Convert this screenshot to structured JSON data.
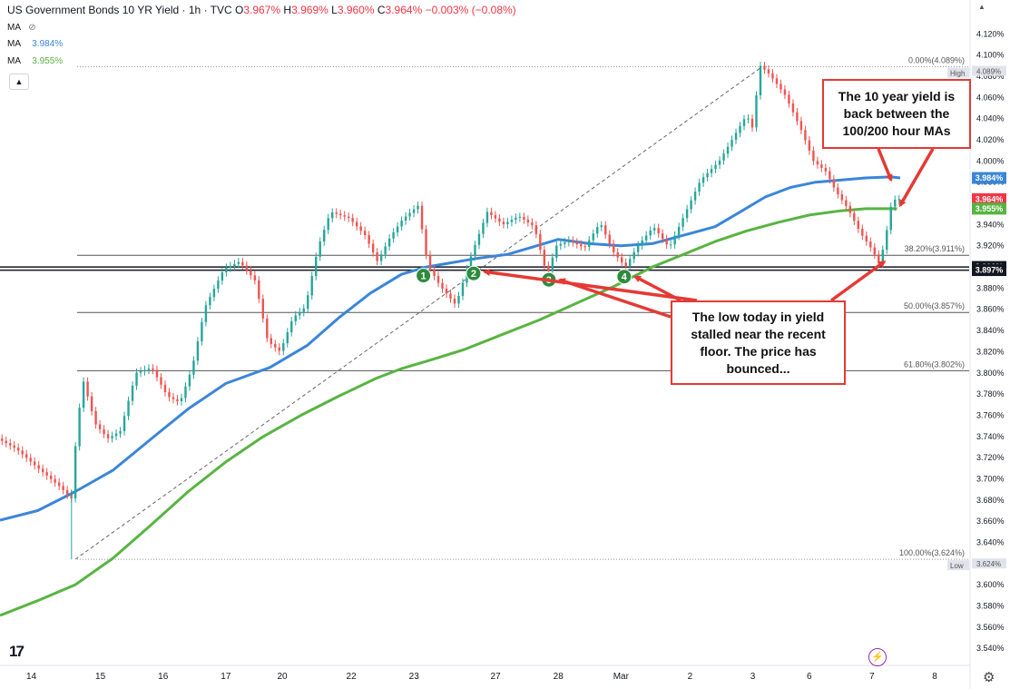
{
  "header": {
    "title": "US Government Bonds 10 YR Yield · 1h · TVC",
    "ohlc": [
      {
        "k": "O",
        "v": "3.967%"
      },
      {
        "k": "H",
        "v": "3.969%"
      },
      {
        "k": "L",
        "v": "3.960%"
      },
      {
        "k": "C",
        "v": "3.964%"
      }
    ],
    "change": "−0.003% (−0.08%)",
    "ma_label": "MA",
    "ma_values": [
      "3.984%",
      "3.955%"
    ],
    "collapse_icon": "chevron-up-icon"
  },
  "colors": {
    "up": "#26a69a",
    "down": "#ef5350",
    "ma100": "#3a86d9",
    "ma200": "#58b442",
    "annotation": "#e53935",
    "marker": "#2e8b3d"
  },
  "chart_data": {
    "type": "line",
    "title": "US Government Bonds 10 YR Yield · 1h · TVC",
    "y_unit": "%",
    "ylim": [
      3.535,
      4.128
    ],
    "y_ticks": [
      "4.120%",
      "4.100%",
      "4.080%",
      "4.060%",
      "4.040%",
      "4.020%",
      "4.000%",
      "3.980%",
      "3.960%",
      "3.940%",
      "3.920%",
      "3.880%",
      "3.860%",
      "3.840%",
      "3.820%",
      "3.800%",
      "3.780%",
      "3.760%",
      "3.740%",
      "3.720%",
      "3.700%",
      "3.680%",
      "3.660%",
      "3.640%",
      "3.600%",
      "3.580%",
      "3.560%",
      "3.540%"
    ],
    "x_ticks": [
      "14",
      "15",
      "16",
      "17",
      "20",
      "22",
      "23",
      "27",
      "28",
      "Mar",
      "2",
      "3",
      "6",
      "7",
      "8"
    ],
    "x_tick_pos": [
      0.5,
      1.6,
      2.6,
      3.6,
      4.5,
      5.6,
      6.6,
      7.9,
      8.9,
      9.9,
      11.0,
      12.0,
      12.9,
      13.9,
      14.9
    ],
    "x_range": [
      0,
      15.45
    ],
    "series": [
      {
        "name": "US Government Bonds 10 YR Yield",
        "style": "price",
        "points": [
          [
            0.0,
            3.738
          ],
          [
            0.3,
            3.728
          ],
          [
            0.6,
            3.712
          ],
          [
            0.8,
            3.702
          ],
          [
            1.0,
            3.692
          ],
          [
            1.12,
            3.684
          ],
          [
            1.14,
            3.626
          ],
          [
            1.18,
            3.7
          ],
          [
            1.35,
            3.795
          ],
          [
            1.55,
            3.752
          ],
          [
            1.75,
            3.738
          ],
          [
            1.95,
            3.745
          ],
          [
            2.2,
            3.8
          ],
          [
            2.45,
            3.805
          ],
          [
            2.7,
            3.778
          ],
          [
            2.9,
            3.772
          ],
          [
            3.1,
            3.806
          ],
          [
            3.3,
            3.862
          ],
          [
            3.6,
            3.898
          ],
          [
            3.85,
            3.905
          ],
          [
            4.1,
            3.887
          ],
          [
            4.3,
            3.83
          ],
          [
            4.5,
            3.82
          ],
          [
            4.7,
            3.852
          ],
          [
            4.9,
            3.862
          ],
          [
            5.1,
            3.918
          ],
          [
            5.3,
            3.952
          ],
          [
            5.6,
            3.946
          ],
          [
            5.85,
            3.93
          ],
          [
            6.05,
            3.905
          ],
          [
            6.25,
            3.928
          ],
          [
            6.45,
            3.945
          ],
          [
            6.7,
            3.958
          ],
          [
            6.85,
            3.902
          ],
          [
            7.05,
            3.882
          ],
          [
            7.3,
            3.864
          ],
          [
            7.55,
            3.912
          ],
          [
            7.8,
            3.952
          ],
          [
            8.05,
            3.94
          ],
          [
            8.3,
            3.948
          ],
          [
            8.55,
            3.938
          ],
          [
            8.75,
            3.892
          ],
          [
            8.9,
            3.92
          ],
          [
            9.1,
            3.925
          ],
          [
            9.35,
            3.918
          ],
          [
            9.6,
            3.942
          ],
          [
            9.8,
            3.915
          ],
          [
            10.0,
            3.9
          ],
          [
            10.2,
            3.92
          ],
          [
            10.45,
            3.938
          ],
          [
            10.7,
            3.918
          ],
          [
            10.95,
            3.95
          ],
          [
            11.2,
            3.982
          ],
          [
            11.5,
            4.0
          ],
          [
            11.75,
            4.025
          ],
          [
            11.95,
            4.045
          ],
          [
            12.0,
            4.02
          ],
          [
            12.15,
            4.09
          ],
          [
            12.3,
            4.082
          ],
          [
            12.55,
            4.062
          ],
          [
            12.8,
            4.03
          ],
          [
            13.0,
            4.0
          ],
          [
            13.2,
            3.99
          ],
          [
            13.35,
            3.972
          ],
          [
            13.55,
            3.955
          ],
          [
            13.75,
            3.932
          ],
          [
            13.95,
            3.915
          ],
          [
            14.05,
            3.902
          ],
          [
            14.15,
            3.928
          ],
          [
            14.25,
            3.962
          ],
          [
            14.32,
            3.964
          ]
        ]
      },
      {
        "name": "MA (100)",
        "style": "ma100",
        "points": [
          [
            0.0,
            3.661
          ],
          [
            0.6,
            3.67
          ],
          [
            1.2,
            3.688
          ],
          [
            1.8,
            3.708
          ],
          [
            2.5,
            3.742
          ],
          [
            3.0,
            3.766
          ],
          [
            3.6,
            3.79
          ],
          [
            4.3,
            3.805
          ],
          [
            4.9,
            3.826
          ],
          [
            5.4,
            3.852
          ],
          [
            5.9,
            3.875
          ],
          [
            6.4,
            3.893
          ],
          [
            6.8,
            3.9
          ],
          [
            7.2,
            3.904
          ],
          [
            7.6,
            3.908
          ],
          [
            8.1,
            3.912
          ],
          [
            8.5,
            3.919
          ],
          [
            8.9,
            3.926
          ],
          [
            9.4,
            3.922
          ],
          [
            9.9,
            3.92
          ],
          [
            10.4,
            3.922
          ],
          [
            10.9,
            3.93
          ],
          [
            11.4,
            3.938
          ],
          [
            11.8,
            3.952
          ],
          [
            12.2,
            3.966
          ],
          [
            12.6,
            3.975
          ],
          [
            13.0,
            3.98
          ],
          [
            13.4,
            3.982
          ],
          [
            13.8,
            3.984
          ],
          [
            14.2,
            3.985
          ],
          [
            14.35,
            3.984
          ]
        ]
      },
      {
        "name": "MA (200)",
        "style": "ma200",
        "points": [
          [
            0.0,
            3.571
          ],
          [
            0.6,
            3.585
          ],
          [
            1.2,
            3.6
          ],
          [
            1.8,
            3.625
          ],
          [
            2.4,
            3.656
          ],
          [
            3.0,
            3.688
          ],
          [
            3.6,
            3.716
          ],
          [
            4.2,
            3.74
          ],
          [
            4.8,
            3.76
          ],
          [
            5.4,
            3.778
          ],
          [
            6.0,
            3.795
          ],
          [
            6.4,
            3.804
          ],
          [
            6.8,
            3.811
          ],
          [
            7.4,
            3.822
          ],
          [
            8.0,
            3.836
          ],
          [
            8.6,
            3.85
          ],
          [
            9.2,
            3.866
          ],
          [
            9.8,
            3.882
          ],
          [
            10.4,
            3.9
          ],
          [
            10.9,
            3.912
          ],
          [
            11.4,
            3.924
          ],
          [
            11.9,
            3.934
          ],
          [
            12.4,
            3.942
          ],
          [
            12.9,
            3.949
          ],
          [
            13.4,
            3.953
          ],
          [
            13.8,
            3.955
          ],
          [
            14.3,
            3.955
          ]
        ]
      }
    ],
    "fib_lines": [
      {
        "label": "0.00%(4.089%)",
        "value": 4.089
      },
      {
        "label": "38.20%(3.911%)",
        "value": 3.911
      },
      {
        "label": "50.00%(3.857%)",
        "value": 3.857
      },
      {
        "label": "61.80%(3.802%)",
        "value": 3.802
      },
      {
        "label": "100.00%(3.624%)",
        "value": 3.624
      }
    ],
    "horizontal_lines": [
      3.9,
      3.897
    ],
    "trend_line": {
      "from": [
        1.2,
        3.624
      ],
      "to": [
        12.15,
        4.089
      ]
    },
    "level_markers": [
      {
        "label": "High",
        "value": 4.089,
        "price": "4.089%"
      },
      {
        "label": "Low",
        "value": 3.624,
        "price": "3.624%"
      }
    ],
    "price_tags": [
      {
        "value": 3.984,
        "text": "3.984%",
        "color": "#3a86d9"
      },
      {
        "value": 3.964,
        "text": "3.964%",
        "color": "#f23645"
      },
      {
        "value": 3.955,
        "text": "3.955%",
        "color": "#58b442"
      },
      {
        "value": 3.9,
        "text": "3.900%",
        "color": "#131722"
      },
      {
        "value": 3.897,
        "text": "3.897%",
        "color": "#131722"
      }
    ],
    "numbered_markers": [
      {
        "label": "1",
        "x": 6.75,
        "y": 3.897
      },
      {
        "label": "2",
        "x": 7.55,
        "y": 3.899
      },
      {
        "label": "3",
        "x": 8.75,
        "y": 3.893
      },
      {
        "label": "4",
        "x": 9.95,
        "y": 3.896
      }
    ]
  },
  "annotations": [
    {
      "id": "ma-callout",
      "text": "The 10 year yield is back between the 100/200 hour MAs"
    },
    {
      "id": "floor-callout",
      "text": "The low today in yield stalled near the recent floor. The price has bounced..."
    }
  ],
  "footer": {
    "logo_text": "17",
    "settings_icon": "gear-icon",
    "scroll_icon": "chevron-up-icon",
    "bolt_icon": "lightning-icon"
  }
}
